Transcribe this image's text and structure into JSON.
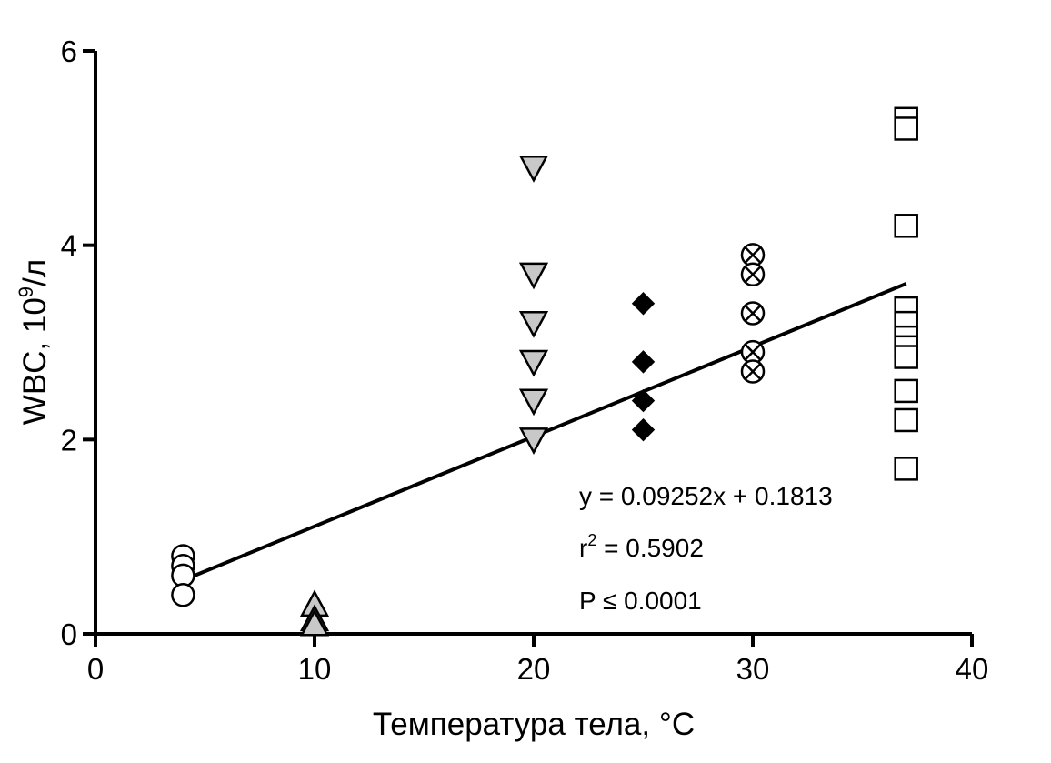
{
  "chart_data": {
    "type": "scatter",
    "xlabel": "Температура тела, °C",
    "ylabel_main": "WBC, 10",
    "ylabel_sup": "9",
    "ylabel_unit": "/л",
    "xlim": [
      0,
      40
    ],
    "ylim": [
      0,
      6
    ],
    "xticks": [
      0,
      10,
      20,
      30,
      40
    ],
    "yticks": [
      0,
      2,
      4,
      6
    ],
    "grid": false,
    "colors": {
      "open": "#ffffff",
      "gray": "#c8c8c8",
      "black": "#000000",
      "stroke": "#000000"
    },
    "series": [
      {
        "marker": "circle-open",
        "x": [
          4,
          4,
          4,
          4
        ],
        "y": [
          0.8,
          0.7,
          0.6,
          0.4
        ]
      },
      {
        "marker": "triangle-up-gray",
        "x": [
          10,
          10,
          10
        ],
        "y": [
          0.3,
          0.15,
          0.1
        ]
      },
      {
        "marker": "triangle-down-gray",
        "x": [
          20,
          20,
          20,
          20,
          20,
          20
        ],
        "y": [
          4.8,
          3.7,
          3.2,
          2.8,
          2.4,
          2.0
        ]
      },
      {
        "marker": "diamond-black",
        "x": [
          25,
          25,
          25,
          25
        ],
        "y": [
          3.4,
          2.8,
          2.4,
          2.1
        ]
      },
      {
        "marker": "circle-x",
        "x": [
          30,
          30,
          30,
          30,
          30
        ],
        "y": [
          3.9,
          3.7,
          3.3,
          2.9,
          2.7
        ]
      },
      {
        "marker": "square-open",
        "x": [
          37,
          37,
          37,
          37,
          37,
          37,
          37,
          37,
          37,
          37,
          37
        ],
        "y": [
          5.3,
          5.2,
          4.2,
          3.35,
          3.2,
          3.05,
          2.95,
          2.85,
          2.5,
          2.2,
          1.7
        ]
      }
    ],
    "regression": {
      "slope": 0.09252,
      "intercept": 0.1813,
      "x_range": [
        4,
        37
      ]
    },
    "annotations": {
      "equation": "y = 0.09252x + 0.1813",
      "r2_prefix": "r",
      "r2_sup": "2",
      "r2_value": " = 0.5902",
      "pvalue": "P ≤ 0.0001"
    }
  }
}
